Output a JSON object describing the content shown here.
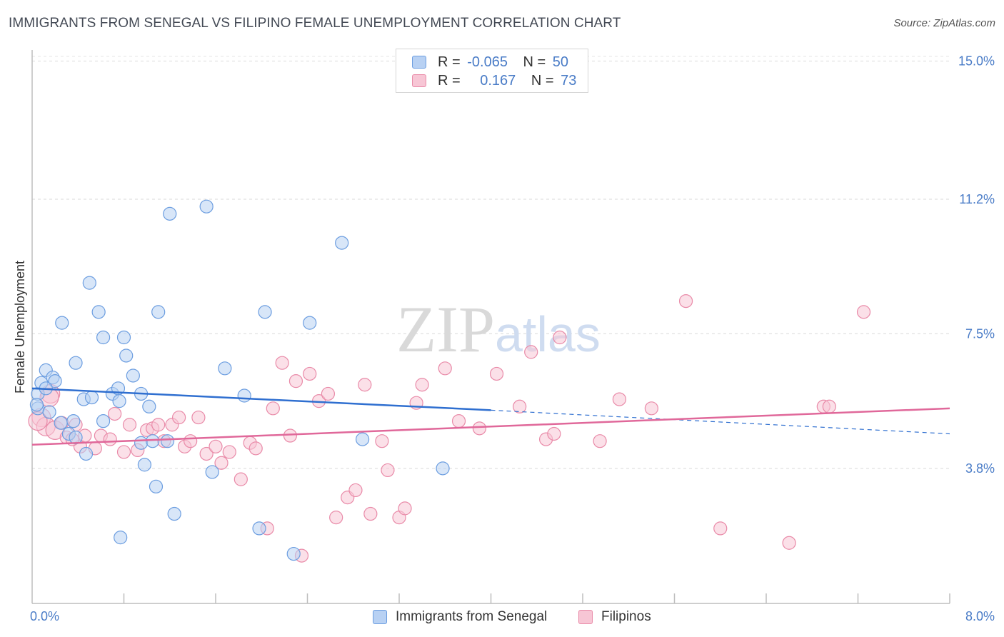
{
  "title": "IMMIGRANTS FROM SENEGAL VS FILIPINO FEMALE UNEMPLOYMENT CORRELATION CHART",
  "source": "Source: ZipAtlas.com",
  "watermark": "ZIPatlas",
  "colors": {
    "senegal_fill": "#b8d1f3",
    "senegal_stroke": "#6b9de0",
    "senegal_line": "#2f6fd0",
    "filipino_fill": "#f7c6d5",
    "filipino_stroke": "#e98aa8",
    "filipino_line": "#e0689a",
    "axis_text": "#4a7cc7"
  },
  "stats": [
    {
      "r_label": "R =",
      "r_value": "-0.065",
      "n_label": "N =",
      "n_value": "50"
    },
    {
      "r_label": "R =",
      "r_value": "0.167",
      "n_label": "N =",
      "n_value": "73"
    }
  ],
  "chart_data": {
    "type": "scatter",
    "title": "IMMIGRANTS FROM SENEGAL VS FILIPINO FEMALE UNEMPLOYMENT CORRELATION CHART",
    "xlabel": "",
    "ylabel": "Female Unemployment",
    "xlim": [
      0,
      8
    ],
    "ylim": [
      0,
      15.5
    ],
    "x_tick_labels": [
      "0.0%",
      "8.0%"
    ],
    "y_ticks": [
      3.8,
      7.5,
      11.2,
      15.0
    ],
    "y_tick_labels": [
      "3.8%",
      "7.5%",
      "11.2%",
      "15.0%"
    ],
    "grid": "horizontal dashed",
    "legend_position": "bottom",
    "series": [
      {
        "name": "Immigrants from Senegal",
        "trend": {
          "x": [
            0.0,
            4.0
          ],
          "y": [
            6.0,
            5.4
          ],
          "dashed_extension_to_x": 8.0,
          "dashed_end_y": 4.75
        },
        "points": [
          [
            0.05,
            5.85
          ],
          [
            0.08,
            6.15
          ],
          [
            0.12,
            6.5
          ],
          [
            0.18,
            6.3
          ],
          [
            0.2,
            6.2
          ],
          [
            0.26,
            7.8
          ],
          [
            0.38,
            6.7
          ],
          [
            0.5,
            8.9
          ],
          [
            0.58,
            8.1
          ],
          [
            0.62,
            7.4
          ],
          [
            0.7,
            5.85
          ],
          [
            0.75,
            6.0
          ],
          [
            0.76,
            5.65
          ],
          [
            0.8,
            7.4
          ],
          [
            0.82,
            6.9
          ],
          [
            0.88,
            6.35
          ],
          [
            0.95,
            5.85
          ],
          [
            1.02,
            5.5
          ],
          [
            1.1,
            8.1
          ],
          [
            1.2,
            10.8
          ],
          [
            1.52,
            11.0
          ],
          [
            1.68,
            6.55
          ],
          [
            1.85,
            5.8
          ],
          [
            2.03,
            8.1
          ],
          [
            2.42,
            7.8
          ],
          [
            2.7,
            10.0
          ],
          [
            0.05,
            5.45
          ],
          [
            0.15,
            5.35
          ],
          [
            0.12,
            6.0
          ],
          [
            0.25,
            5.05
          ],
          [
            0.32,
            4.75
          ],
          [
            0.36,
            5.1
          ],
          [
            0.45,
            5.7
          ],
          [
            0.52,
            5.75
          ],
          [
            0.62,
            5.1
          ],
          [
            0.95,
            4.5
          ],
          [
            1.05,
            4.55
          ],
          [
            1.08,
            3.3
          ],
          [
            1.18,
            4.55
          ],
          [
            0.98,
            3.9
          ],
          [
            0.47,
            4.2
          ],
          [
            1.57,
            3.7
          ],
          [
            1.24,
            2.55
          ],
          [
            1.98,
            2.15
          ],
          [
            0.77,
            1.9
          ],
          [
            2.28,
            1.45
          ],
          [
            2.88,
            4.6
          ],
          [
            3.58,
            3.8
          ],
          [
            0.38,
            4.65
          ],
          [
            0.04,
            5.55
          ]
        ]
      },
      {
        "name": "Filipinos",
        "trend": {
          "x": [
            0.0,
            8.0
          ],
          "y": [
            4.45,
            5.45
          ]
        },
        "points": [
          [
            0.08,
            5.2
          ],
          [
            0.12,
            4.95
          ],
          [
            0.16,
            5.85
          ],
          [
            0.2,
            4.85
          ],
          [
            0.26,
            5.05
          ],
          [
            0.3,
            4.65
          ],
          [
            0.38,
            5.0
          ],
          [
            0.42,
            4.4
          ],
          [
            0.46,
            4.7
          ],
          [
            0.55,
            4.35
          ],
          [
            0.6,
            4.7
          ],
          [
            0.68,
            4.6
          ],
          [
            0.72,
            5.3
          ],
          [
            0.8,
            4.25
          ],
          [
            0.85,
            5.0
          ],
          [
            0.92,
            4.3
          ],
          [
            1.0,
            4.85
          ],
          [
            1.05,
            4.9
          ],
          [
            1.1,
            5.0
          ],
          [
            1.15,
            4.55
          ],
          [
            1.22,
            5.0
          ],
          [
            1.28,
            5.2
          ],
          [
            1.33,
            4.4
          ],
          [
            1.38,
            4.55
          ],
          [
            1.45,
            5.2
          ],
          [
            1.52,
            4.2
          ],
          [
            1.6,
            4.4
          ],
          [
            1.65,
            3.95
          ],
          [
            1.72,
            4.25
          ],
          [
            1.82,
            3.5
          ],
          [
            1.9,
            4.5
          ],
          [
            1.95,
            4.35
          ],
          [
            2.05,
            2.15
          ],
          [
            2.1,
            5.45
          ],
          [
            2.18,
            6.7
          ],
          [
            2.25,
            4.7
          ],
          [
            2.3,
            6.2
          ],
          [
            2.35,
            1.4
          ],
          [
            2.42,
            6.4
          ],
          [
            2.5,
            5.65
          ],
          [
            2.58,
            5.85
          ],
          [
            2.65,
            2.45
          ],
          [
            2.75,
            3.0
          ],
          [
            2.82,
            3.2
          ],
          [
            2.9,
            6.1
          ],
          [
            2.95,
            2.55
          ],
          [
            3.05,
            4.55
          ],
          [
            3.1,
            3.75
          ],
          [
            3.2,
            2.45
          ],
          [
            3.25,
            2.7
          ],
          [
            3.35,
            5.6
          ],
          [
            3.4,
            6.1
          ],
          [
            3.6,
            6.55
          ],
          [
            3.72,
            5.1
          ],
          [
            3.9,
            4.9
          ],
          [
            4.05,
            6.4
          ],
          [
            4.25,
            5.5
          ],
          [
            4.35,
            7.0
          ],
          [
            4.48,
            4.6
          ],
          [
            4.55,
            4.75
          ],
          [
            4.6,
            7.4
          ],
          [
            4.95,
            4.55
          ],
          [
            5.12,
            5.7
          ],
          [
            5.4,
            5.45
          ],
          [
            5.7,
            8.4
          ],
          [
            6.0,
            2.15
          ],
          [
            6.6,
            1.75
          ],
          [
            6.9,
            5.5
          ],
          [
            6.95,
            5.5
          ],
          [
            7.25,
            8.1
          ],
          [
            0.35,
            4.6
          ],
          [
            0.15,
            5.75
          ],
          [
            0.05,
            5.1
          ]
        ]
      }
    ]
  },
  "legend": {
    "senegal": "Immigrants from Senegal",
    "filipinos": "Filipinos"
  }
}
